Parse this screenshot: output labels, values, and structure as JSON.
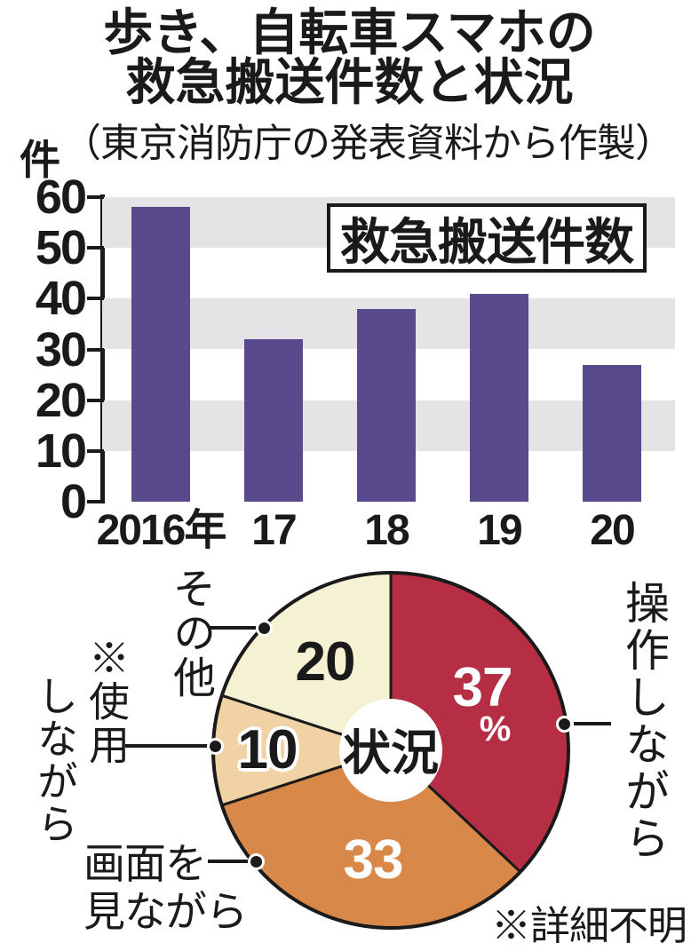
{
  "title": {
    "line1": "歩き、自転車スマホの",
    "line2": "救急搬送件数と状況"
  },
  "subtitle": "（東京消防庁の発表資料から作製）",
  "chart_data": [
    {
      "type": "bar",
      "title": "救急搬送件数",
      "ylabel": "件",
      "categories": [
        "2016年",
        "17",
        "18",
        "19",
        "20"
      ],
      "values": [
        58,
        32,
        38,
        41,
        27
      ],
      "ylim": [
        0,
        60
      ],
      "y_ticks": [
        0,
        10,
        20,
        30,
        40,
        50,
        60
      ],
      "grid": "horizontal gray bands at 10-20, 30-40, 50-60",
      "stripe_bands": [
        [
          10,
          20
        ],
        [
          30,
          40
        ],
        [
          50,
          60
        ]
      ],
      "legend_position": "top-right boxed label",
      "bar_color": "#584a8c",
      "stripe_color": "#e4e3e6"
    },
    {
      "type": "pie",
      "title": "状況",
      "donut_hole_label": "状況",
      "direction": "clockwise",
      "start_angle": "12 o'clock",
      "slices": [
        {
          "label": "操作しながら",
          "value": 37,
          "display": "37",
          "unit": "%",
          "color": "#b52e43",
          "value_color": "#ffffff"
        },
        {
          "label": "画面を見ながら",
          "value": 33,
          "display": "33",
          "color": "#d8894a",
          "value_color": "#ffffff"
        },
        {
          "label": "※使用しながら",
          "value": 10,
          "display": "10",
          "color": "#f0d2a4",
          "value_color": "#1a1a1a"
        },
        {
          "label": "その他",
          "value": 20,
          "display": "20",
          "color": "#f5f1d3",
          "value_color": "#1a1a1a"
        }
      ],
      "footnote": "※詳細不明"
    }
  ],
  "pie_external_labels": {
    "sousa": "操作しながら",
    "gamen_line1": "画面を",
    "gamen_line2": "見ながら",
    "shiyou_line1": "※使用",
    "shiyou_line2": "しながら",
    "sonota": "その他"
  },
  "colors": {
    "text": "#1a1a1a",
    "bar": "#584a8c",
    "stripe": "#e4e3e6",
    "pie_red": "#b52e43",
    "pie_orange": "#d8894a",
    "pie_tan": "#f0d2a4",
    "pie_cream": "#f5f1d3"
  }
}
